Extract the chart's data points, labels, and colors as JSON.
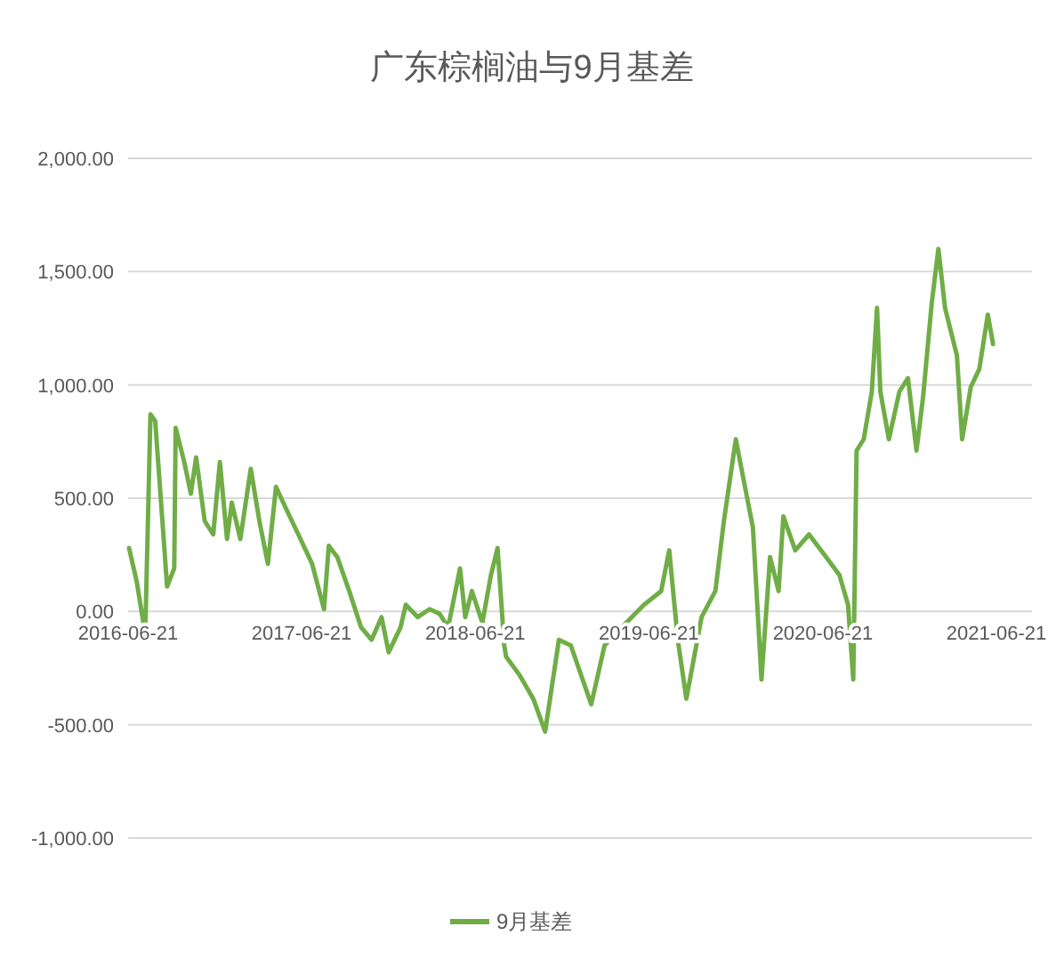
{
  "chart_data": {
    "type": "line",
    "title": "广东棕榈油与9月基差",
    "series": [
      {
        "name": "9月基差",
        "color": "#70ad47",
        "x": [
          "2016-06-23",
          "2016-07-09",
          "2016-07-27",
          "2016-08-07",
          "2016-08-17",
          "2016-08-28",
          "2016-09-11",
          "2016-09-26",
          "2016-09-29",
          "2016-10-17",
          "2016-10-31",
          "2016-11-11",
          "2016-11-29",
          "2016-12-17",
          "2016-12-31",
          "2017-01-15",
          "2017-01-25",
          "2017-02-12",
          "2017-03-06",
          "2017-03-24",
          "2017-04-11",
          "2017-04-28",
          "2017-05-20",
          "2017-06-14",
          "2017-07-13",
          "2017-08-07",
          "2017-08-17",
          "2017-09-04",
          "2017-09-29",
          "2017-10-24",
          "2017-11-15",
          "2017-12-06",
          "2017-12-21",
          "2018-01-15",
          "2018-01-26",
          "2018-02-20",
          "2018-03-17",
          "2018-04-07",
          "2018-04-25",
          "2018-05-20",
          "2018-05-31",
          "2018-06-14",
          "2018-07-06",
          "2018-07-24",
          "2018-08-07",
          "2018-08-21",
          "2018-08-25",
          "2018-09-22",
          "2018-10-21",
          "2018-11-15",
          "2018-12-14",
          "2019-01-08",
          "2019-02-20",
          "2019-03-20",
          "2019-04-25",
          "2019-06-11",
          "2019-07-17",
          "2019-08-03",
          "2019-08-21",
          "2019-09-08",
          "2019-10-10",
          "2019-11-08",
          "2019-11-26",
          "2019-12-21",
          "2020-01-12",
          "2020-01-26",
          "2020-02-13",
          "2020-03-02",
          "2020-03-20",
          "2020-03-30",
          "2020-04-24",
          "2020-05-23",
          "2020-06-28",
          "2020-07-26",
          "2020-08-13",
          "2020-08-24",
          "2020-08-31",
          "2020-09-15",
          "2020-10-02",
          "2020-10-13",
          "2020-10-20",
          "2020-11-07",
          "2020-11-29",
          "2020-12-17",
          "2021-01-04",
          "2021-01-18",
          "2021-02-05",
          "2021-02-19",
          "2021-03-05",
          "2021-03-30",
          "2021-04-10",
          "2021-04-28",
          "2021-05-16",
          "2021-06-03",
          "2021-06-14"
        ],
        "values": [
          280,
          133,
          -100,
          870,
          840,
          520,
          110,
          190,
          810,
          660,
          520,
          680,
          400,
          340,
          660,
          320,
          480,
          320,
          630,
          400,
          210,
          550,
          450,
          340,
          210,
          10,
          290,
          240,
          90,
          -70,
          -125,
          -25,
          -180,
          -70,
          30,
          -25,
          10,
          -10,
          -70,
          190,
          -25,
          90,
          -50,
          160,
          280,
          -150,
          -200,
          -280,
          -385,
          -530,
          -125,
          -150,
          -410,
          -150,
          -70,
          30,
          90,
          270,
          -125,
          -385,
          -25,
          90,
          400,
          760,
          520,
          370,
          -300,
          240,
          90,
          420,
          270,
          340,
          240,
          160,
          30,
          -300,
          710,
          760,
          970,
          1340,
          970,
          760,
          970,
          1030,
          710,
          950,
          1360,
          1600,
          1340,
          1130,
          760,
          990,
          1070,
          1310,
          1180
        ]
      }
    ],
    "xlim": [
      "2016-06-21",
      "2021-06-21"
    ],
    "xticks": [
      {
        "value": "2016-06-21",
        "label": "2016-06-21"
      },
      {
        "value": "2017-06-21",
        "label": "2017-06-21"
      },
      {
        "value": "2018-06-21",
        "label": "2018-06-21"
      },
      {
        "value": "2019-06-21",
        "label": "2019-06-21"
      },
      {
        "value": "2020-06-21",
        "label": "2020-06-21"
      },
      {
        "value": "2021-06-21",
        "label": "2021-06-21"
      }
    ],
    "ylim": [
      -1000,
      2000
    ],
    "yticks": [
      {
        "value": -1000,
        "label": "-1,000.00"
      },
      {
        "value": -500,
        "label": "-500.00"
      },
      {
        "value": 0,
        "label": "0.00"
      },
      {
        "value": 500,
        "label": "500.00"
      },
      {
        "value": 1000,
        "label": "1,000.00"
      },
      {
        "value": 1500,
        "label": "1,500.00"
      },
      {
        "value": 2000,
        "label": "2,000.00"
      }
    ],
    "grid": "y",
    "legend": "bottom",
    "line_style": "solid"
  }
}
